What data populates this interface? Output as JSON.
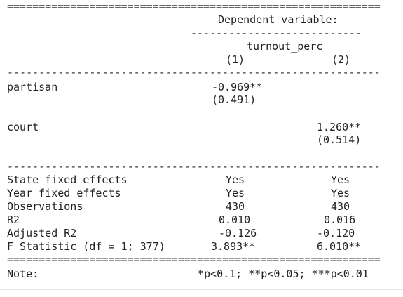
{
  "rules": {
    "double": "===========================================================",
    "single": "-----------------------------------------------------------",
    "partial": "---------------------------"
  },
  "header": {
    "dependent_variable": "Dependent variable:",
    "variable_name": "turnout_perc",
    "col1": "(1)",
    "col2": "(2)"
  },
  "coefficients": [
    {
      "label": "partisan",
      "col1": "-0.969**",
      "col1_se": "(0.491)",
      "col2": "",
      "col2_se": ""
    },
    {
      "label": "court",
      "col1": "",
      "col1_se": "",
      "col2": "1.260**",
      "col2_se": "(0.514)"
    }
  ],
  "stats": [
    {
      "label": "State fixed effects",
      "col1": "Yes",
      "col2": "Yes"
    },
    {
      "label": "Year fixed effects",
      "col1": "Yes",
      "col2": "Yes"
    },
    {
      "label": "Observations",
      "col1": "430",
      "col2": "430"
    },
    {
      "label": "R2",
      "col1": "0.010",
      "col2": "0.016"
    },
    {
      "label": "Adjusted R2",
      "col1": "-0.126",
      "col2": "-0.120"
    },
    {
      "label": "F Statistic (df = 1; 377)",
      "col1": "3.893**",
      "col2": "6.010**"
    }
  ],
  "note": {
    "label": "Note:",
    "text": "*p<0.1; **p<0.05; ***p<0.01"
  }
}
